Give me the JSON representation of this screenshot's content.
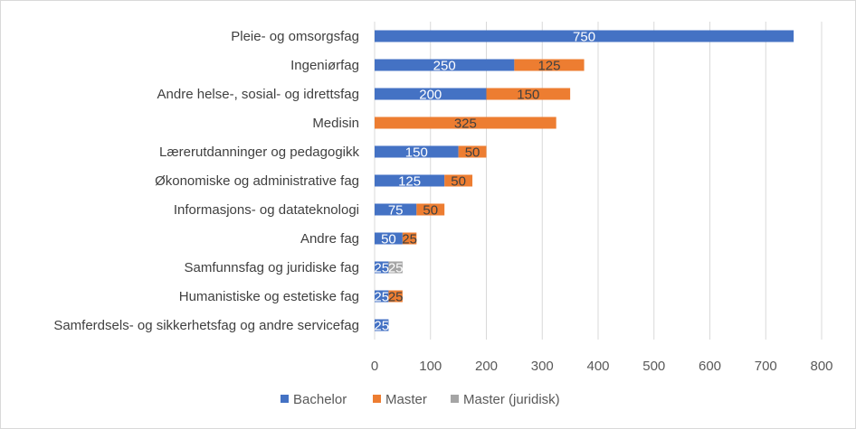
{
  "chart_data": {
    "type": "bar",
    "orientation": "horizontal",
    "stacked": true,
    "categories": [
      "Pleie- og omsorgsfag",
      "Ingeniørfag",
      "Andre helse-, sosial- og idrettsfag",
      "Medisin",
      "Lærerutdanninger og pedagogikk",
      "Økonomiske og administrative fag",
      "Informasjons- og datateknologi",
      "Andre fag",
      "Samfunnsfag og juridiske fag",
      "Humanistiske og estetiske fag",
      "Samferdsels- og sikkerhetsfag og andre servicefag"
    ],
    "series": [
      {
        "name": "Bachelor",
        "color": "#4472c4",
        "values": [
          750,
          250,
          200,
          0,
          150,
          125,
          75,
          50,
          25,
          25,
          25
        ]
      },
      {
        "name": "Master",
        "color": "#ed7d31",
        "values": [
          0,
          125,
          150,
          325,
          50,
          50,
          50,
          25,
          0,
          25,
          0
        ]
      },
      {
        "name": "Master (juridisk)",
        "color": "#a5a5a5",
        "values": [
          0,
          0,
          0,
          0,
          0,
          0,
          0,
          0,
          25,
          0,
          0
        ]
      }
    ],
    "xlim": [
      0,
      800
    ],
    "xticks": [
      "0",
      "100",
      "200",
      "300",
      "400",
      "500",
      "600",
      "700",
      "800"
    ],
    "grid": true,
    "legend_position": "bottom"
  }
}
